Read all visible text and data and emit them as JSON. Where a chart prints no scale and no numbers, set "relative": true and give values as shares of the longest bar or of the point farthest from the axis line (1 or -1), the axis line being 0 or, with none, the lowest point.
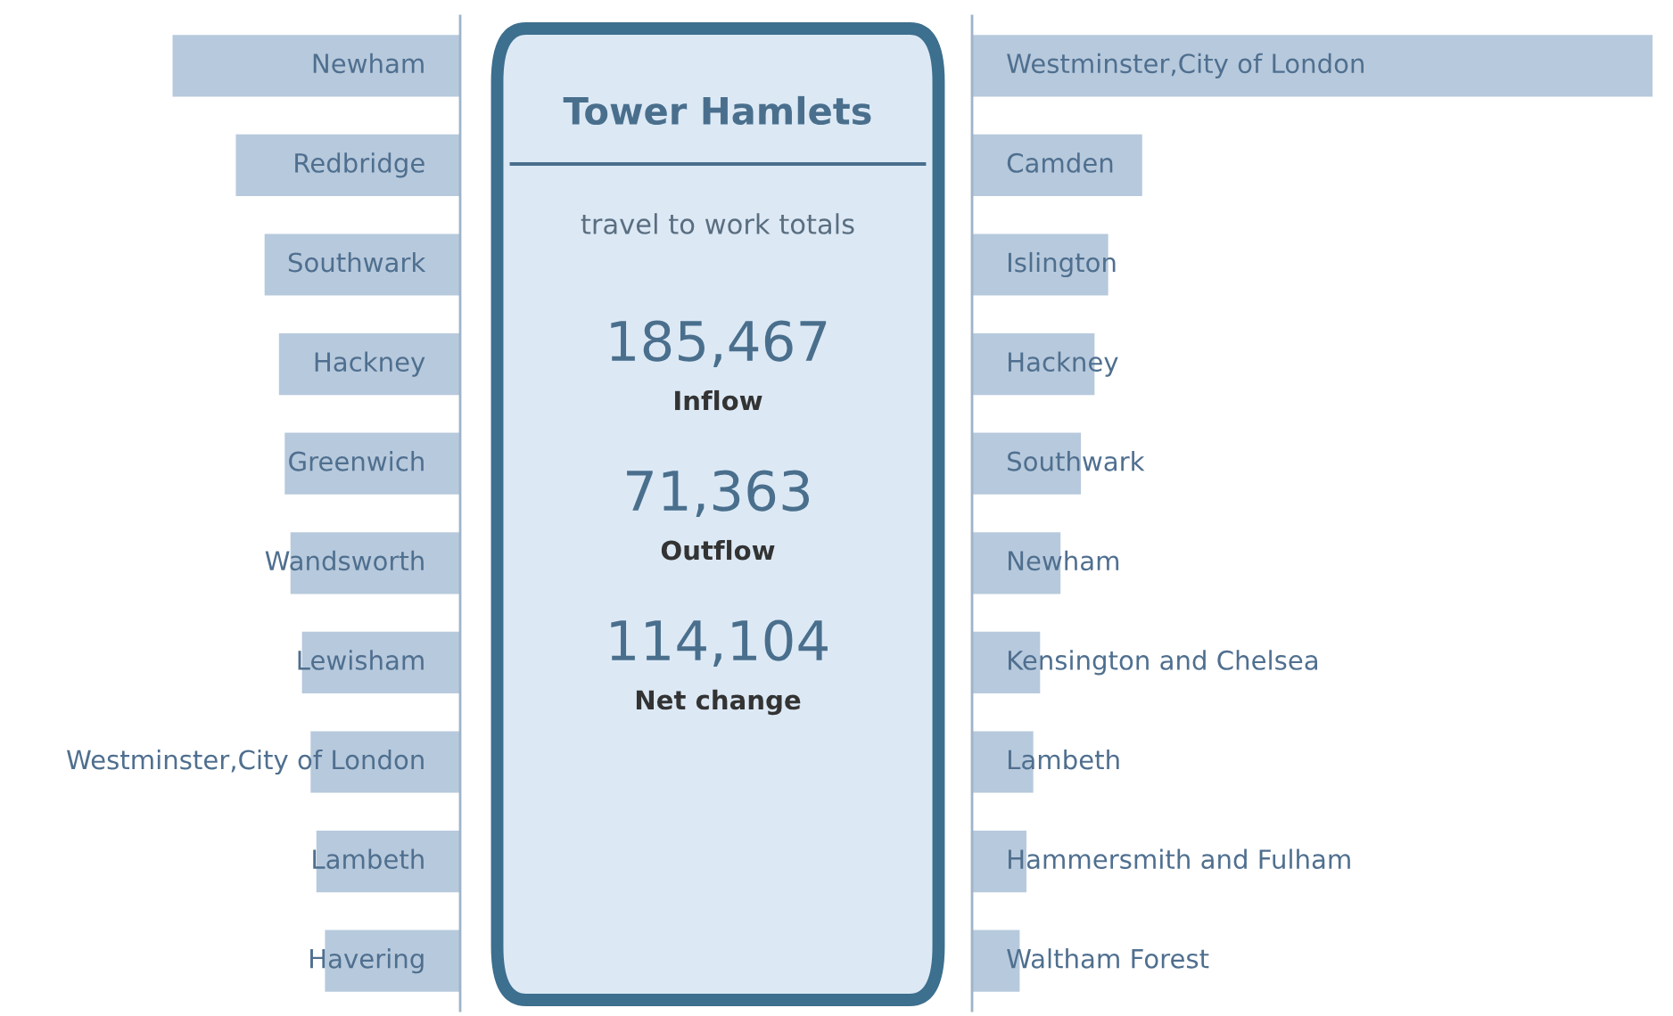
{
  "chart_data": [
    {
      "type": "bar",
      "orientation": "horizontal",
      "relative": true,
      "categories": [
        "Newham",
        "Redbridge",
        "Southwark",
        "Hackney",
        "Greenwich",
        "Wandsworth",
        "Lewisham",
        "Westminster,City of London",
        "Lambeth",
        "Havering"
      ],
      "values": [
        1,
        0.78,
        0.68,
        0.63,
        0.61,
        0.59,
        0.55,
        0.52,
        0.5,
        0.47
      ],
      "color": "#b7c9dc"
    },
    {
      "type": "other",
      "title": "Tower Hamlets",
      "subtitle": "travel to work totals",
      "annotations": [
        "185,467",
        "Inflow",
        "71,363",
        "Outflow",
        "114,104",
        "Net change"
      ]
    },
    {
      "type": "bar",
      "orientation": "horizontal",
      "relative": true,
      "categories": [
        "Westminster,City of London",
        "Camden",
        "Islington",
        "Hackney",
        "Southwark",
        "Newham",
        "Kensington and Chelsea",
        "Lambeth",
        "Hammersmith and Fulham",
        "Waltham Forest"
      ],
      "values": [
        1,
        0.25,
        0.2,
        0.18,
        0.16,
        0.13,
        0.1,
        0.09,
        0.08,
        0.07
      ],
      "color": "#b7c9dc"
    }
  ]
}
